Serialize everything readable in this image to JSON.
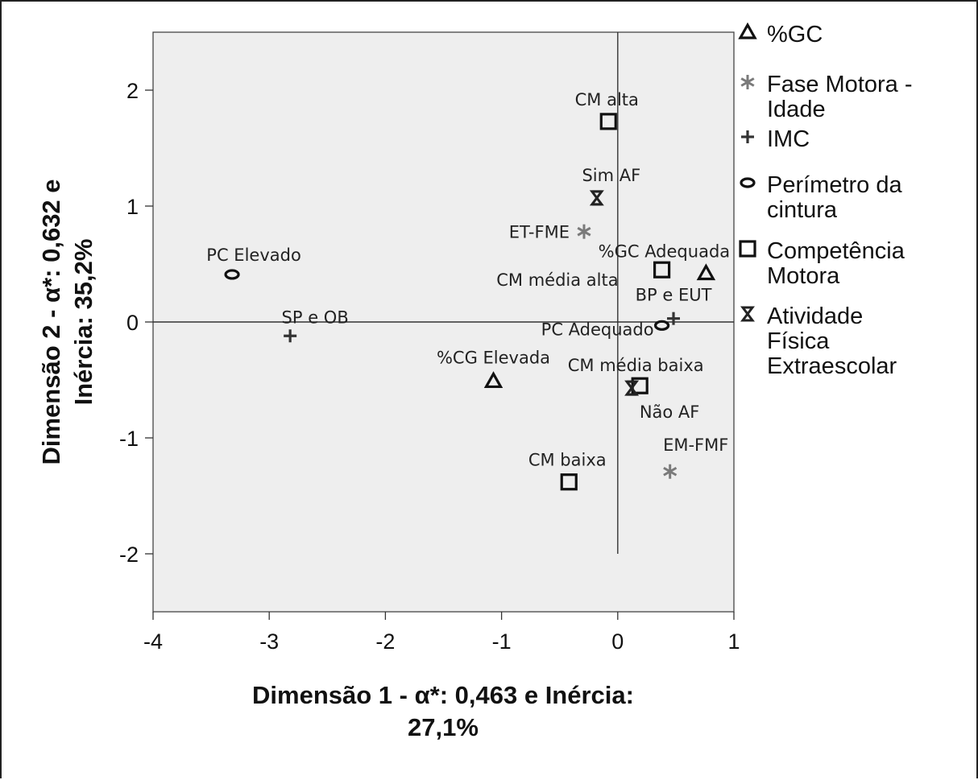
{
  "chart_data": {
    "type": "scatter",
    "title": "",
    "xlabel": [
      "Dimensão 1 - α*: 0,463 e Inércia:",
      "27,1%"
    ],
    "ylabel": [
      "Dimensão 2 - α*: 0,632 e",
      "Inércia: 35,2%"
    ],
    "xlim": [
      -4,
      1
    ],
    "ylim": [
      -2.5,
      2.5
    ],
    "xticks": [
      {
        "v": -4,
        "label": "-4"
      },
      {
        "v": -3,
        "label": "-3"
      },
      {
        "v": -2,
        "label": "-2"
      },
      {
        "v": -1,
        "label": "-1"
      },
      {
        "v": 0,
        "label": "0"
      },
      {
        "v": 1,
        "label": "1"
      }
    ],
    "yticks": [
      {
        "v": -2,
        "label": "-2"
      },
      {
        "v": -1,
        "label": "-1"
      },
      {
        "v": 0,
        "label": "0"
      },
      {
        "v": 1,
        "label": "1"
      },
      {
        "v": 2,
        "label": "2"
      }
    ],
    "reference_lines": {
      "x": 0,
      "y": 0,
      "x_extent": [
        -4,
        1
      ],
      "y_extent": [
        -2,
        2.5
      ]
    },
    "legend_position": "right",
    "series": [
      {
        "name": "%GC",
        "marker": "triangle",
        "color": "#111111",
        "points": [
          {
            "label": "%GC Adequada",
            "x": 0.76,
            "y": 0.42
          },
          {
            "label": "%CG Elevada",
            "x": -1.07,
            "y": -0.51
          }
        ]
      },
      {
        "name": "Fase Motora - Idade",
        "marker": "asterisk",
        "color": "#7a7a7a",
        "points": [
          {
            "label": "ET-FME",
            "x": -0.29,
            "y": 0.78
          },
          {
            "label": "EM-FMF",
            "x": 0.45,
            "y": -1.29
          }
        ]
      },
      {
        "name": "IMC",
        "marker": "plus",
        "color": "#333333",
        "points": [
          {
            "label": "SP e OB",
            "x": -2.82,
            "y": -0.12
          },
          {
            "label": "BP e EUT",
            "x": 0.48,
            "y": 0.03
          }
        ]
      },
      {
        "name": "Perímetro da cintura",
        "marker": "ellipse",
        "color": "#111111",
        "points": [
          {
            "label": "PC Elevado",
            "x": -3.32,
            "y": 0.41
          },
          {
            "label": "PC Adequado",
            "x": 0.38,
            "y": -0.03
          }
        ]
      },
      {
        "name": "Competência Motora",
        "marker": "square",
        "color": "#111111",
        "points": [
          {
            "label": "CM alta",
            "x": -0.08,
            "y": 1.73
          },
          {
            "label": "CM média alta",
            "x": 0.38,
            "y": 0.45
          },
          {
            "label": "CM média baixa",
            "x": 0.19,
            "y": -0.55
          },
          {
            "label": "CM baixa",
            "x": -0.42,
            "y": -1.38
          }
        ]
      },
      {
        "name": "Atividade Física Extraescolar",
        "marker": "hourglass",
        "color": "#222222",
        "points": [
          {
            "label": "Sim AF",
            "x": -0.18,
            "y": 1.07
          },
          {
            "label": "Não AF",
            "x": 0.12,
            "y": -0.57
          }
        ]
      }
    ],
    "legend_lines": [
      [
        "%GC"
      ],
      [
        "Fase Motora -",
        "Idade"
      ],
      [
        "IMC"
      ],
      [
        "Perímetro da",
        "cintura"
      ],
      [
        "Competência",
        "Motora"
      ],
      [
        "Atividade",
        "Física",
        "Extraescolar"
      ]
    ]
  }
}
